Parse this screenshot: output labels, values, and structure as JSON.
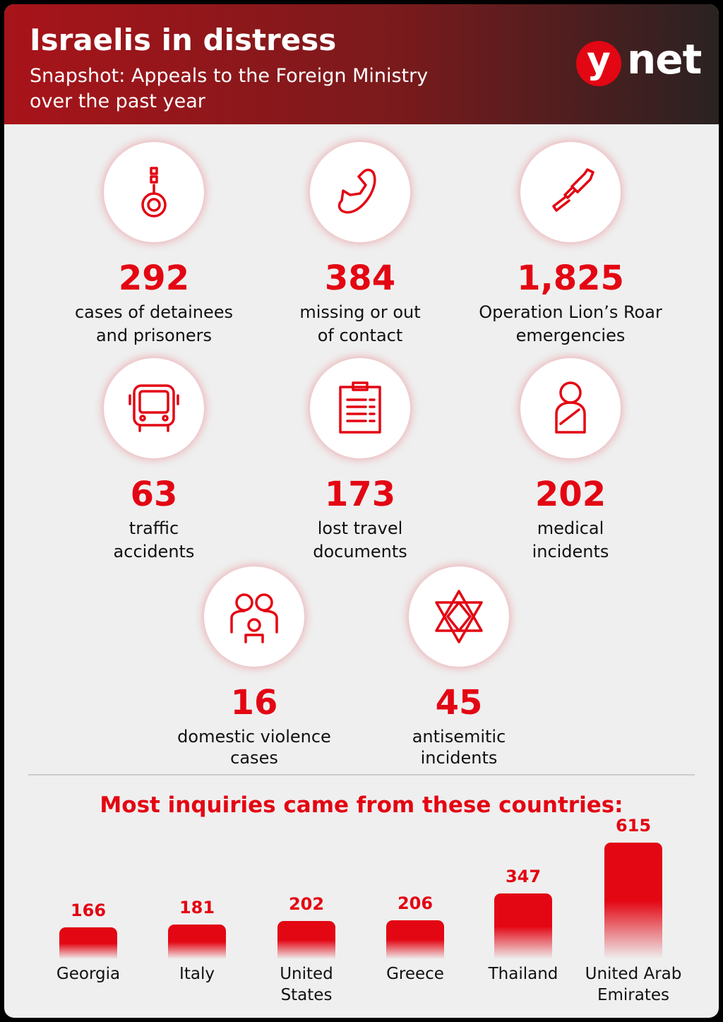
{
  "header": {
    "title": "Israelis in distress",
    "subtitle": [
      "Snapshot: Appeals to the Foreign Ministry",
      "over the past year"
    ],
    "logo": [
      "y",
      "net"
    ]
  },
  "stats": [
    {
      "value": "292",
      "label": [
        "cases of detainees",
        "and prisoners"
      ]
    },
    {
      "value": "384",
      "label": [
        "missing or out",
        "of contact"
      ]
    },
    {
      "value": "1,825",
      "label": [
        "Operation Lion’s Roar",
        "emergencies"
      ]
    },
    {
      "value": "63",
      "label": [
        "traffic",
        "accidents"
      ]
    },
    {
      "value": "173",
      "label": [
        "lost travel",
        "documents"
      ]
    },
    {
      "value": "202",
      "label": [
        "medical",
        "incidents"
      ]
    },
    {
      "value": "16",
      "label": [
        "domestic violence",
        "cases"
      ]
    },
    {
      "value": "45",
      "label": [
        "antisemitic",
        "incidents"
      ]
    }
  ],
  "chart_data": {
    "type": "bar",
    "title": "Most inquiries came from these countries:",
    "categories": [
      "Georgia",
      "Italy",
      "United States",
      "Greece",
      "Thailand",
      "United Arab Emirates"
    ],
    "values": [
      166,
      181,
      202,
      206,
      347,
      615
    ],
    "color": "#e30613"
  }
}
